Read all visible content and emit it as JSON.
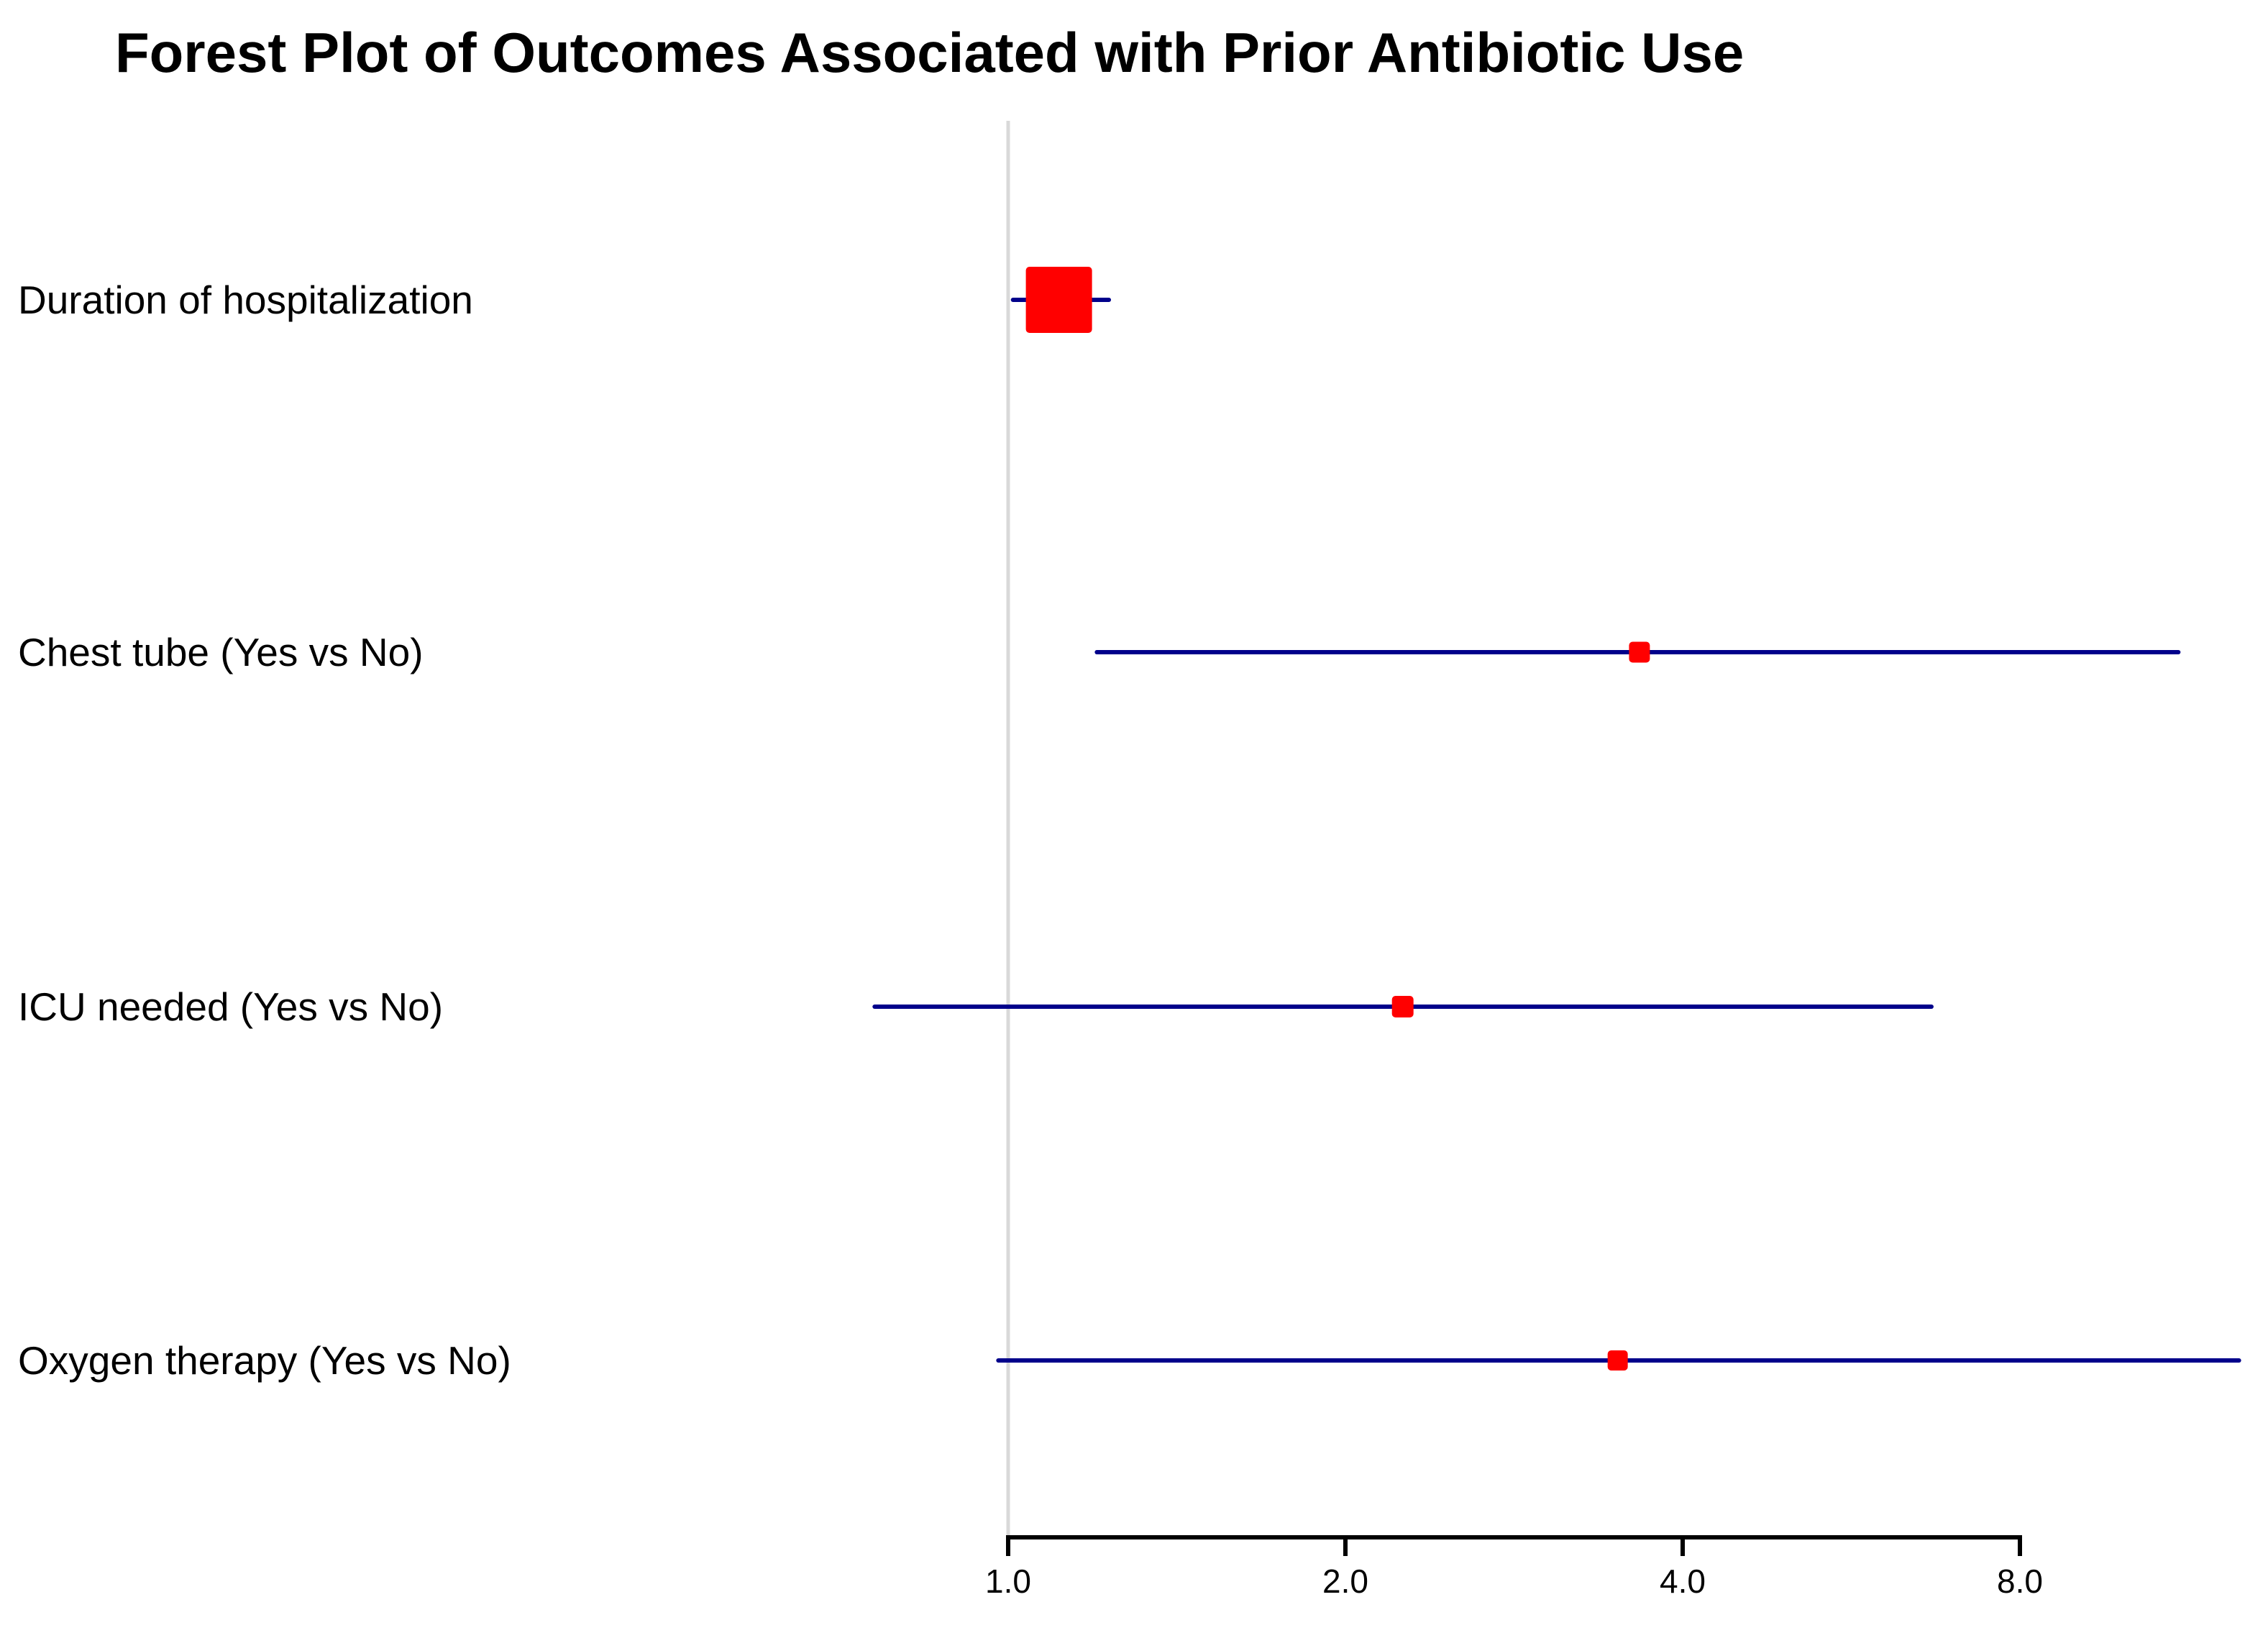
{
  "title": "Forest Plot of Outcomes Associated with Prior Antibiotic Use",
  "colors": {
    "marker": "#FF0000",
    "ci_line": "#00008B",
    "reference_line": "#D9D9D9",
    "axis": "#000000",
    "text": "#000000",
    "background": "#FFFFFF"
  },
  "chart_data": {
    "type": "forest",
    "title": "Forest Plot of Outcomes Associated with Prior Antibiotic Use",
    "x_scale": "log2",
    "x_axis": {
      "tick_labels": [
        "1.0",
        "2.0",
        "4.0",
        "8.0"
      ],
      "tick_values": [
        1.0,
        2.0,
        4.0,
        8.0
      ],
      "axis_drawn_range": [
        1.0,
        8.0
      ]
    },
    "reference_line_value": 1.0,
    "grid": false,
    "legend": false,
    "rows": [
      {
        "label": "Duration of hospitalization",
        "estimate": 1.11,
        "ci_low": 1.01,
        "ci_high": 1.23,
        "marker_size_px": 92
      },
      {
        "label": "Chest tube (Yes vs No)",
        "estimate": 3.66,
        "ci_low": 1.2,
        "ci_high": 11.08,
        "marker_size_px": 29
      },
      {
        "label": "ICU needed (Yes vs No)",
        "estimate": 2.25,
        "ci_low": 0.76,
        "ci_high": 6.67,
        "marker_size_px": 30
      },
      {
        "label": "Oxygen therapy (Yes vs No)",
        "estimate": 3.5,
        "ci_low": 0.98,
        "ci_high": 12.55,
        "marker_size_px": 28
      }
    ]
  }
}
